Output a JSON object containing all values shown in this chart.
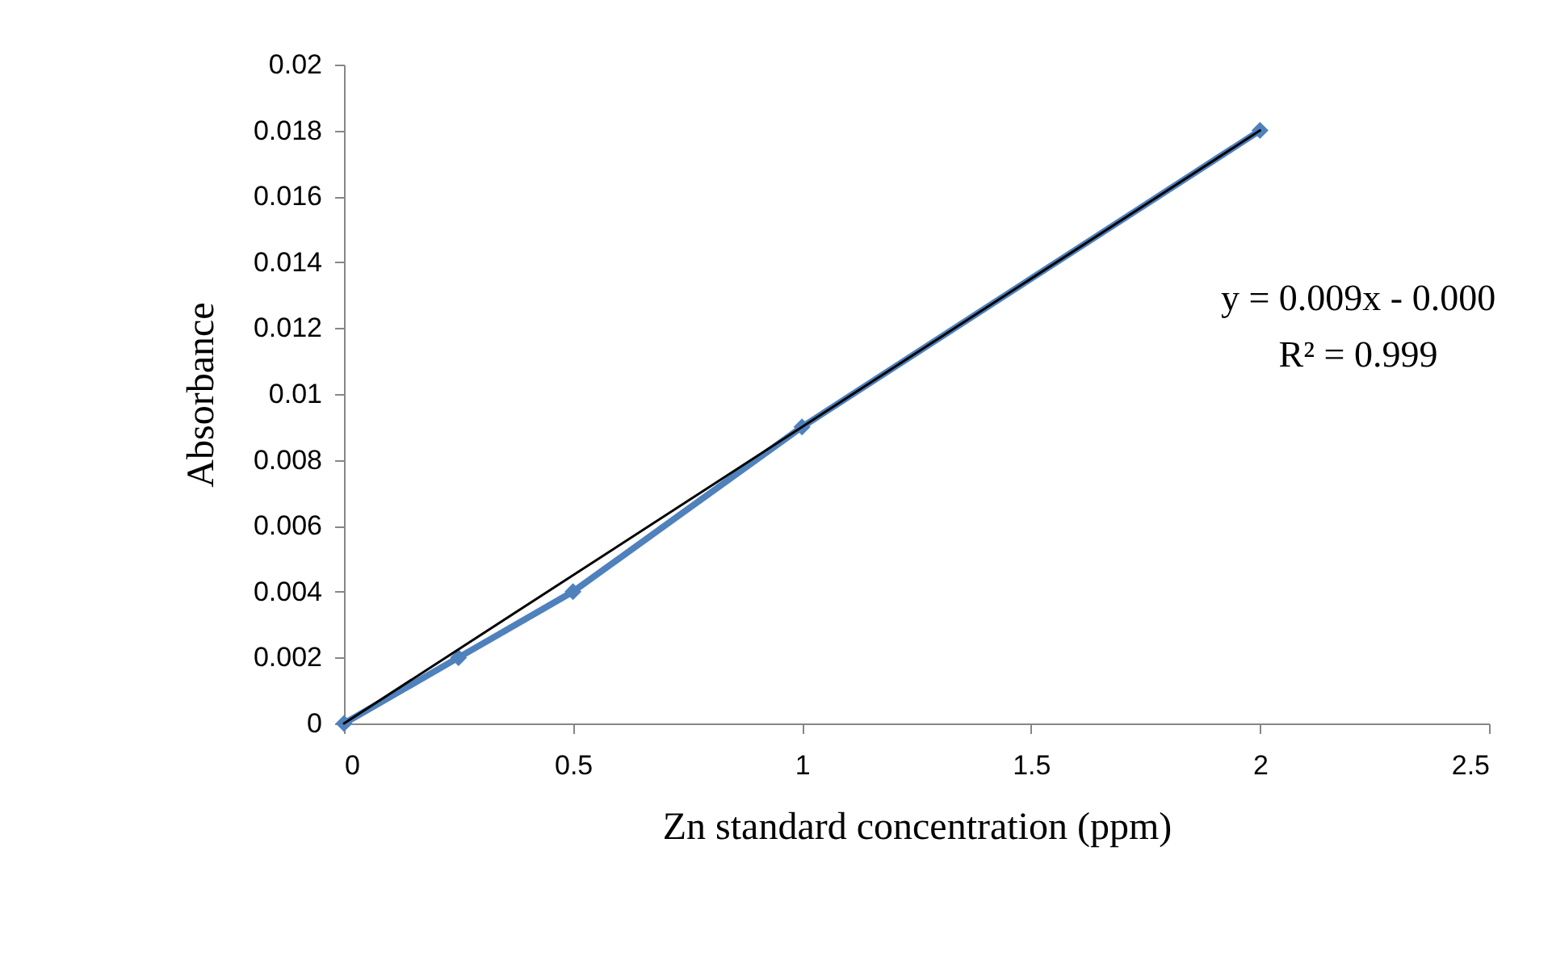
{
  "chart_data": {
    "type": "line",
    "xlabel": "Zn standard concentration (ppm)",
    "ylabel": "Absorbance",
    "x": [
      0,
      0.25,
      0.5,
      1,
      2
    ],
    "series": [
      {
        "color": "#4f81bd",
        "values": [
          0,
          0.002,
          0.004,
          0.009,
          0.018
        ],
        "marker": "diamond"
      },
      {
        "type": "line",
        "color": "#000000",
        "x": [
          0,
          2
        ],
        "values": [
          0,
          0.018
        ],
        "marker": "none"
      }
    ],
    "annotations": [
      "y = 0.009x - 0.000",
      "R² = 0.999"
    ],
    "xlim": [
      0,
      2.5
    ],
    "xticks": [
      0,
      0.5,
      1,
      1.5,
      2,
      2.5
    ],
    "ylim": [
      0,
      0.02
    ],
    "yticks": [
      0,
      0.002,
      0.004,
      0.006,
      0.008,
      0.01,
      0.012,
      0.014,
      0.016,
      0.018,
      0.02
    ],
    "grid": false,
    "line_style": "solid"
  }
}
